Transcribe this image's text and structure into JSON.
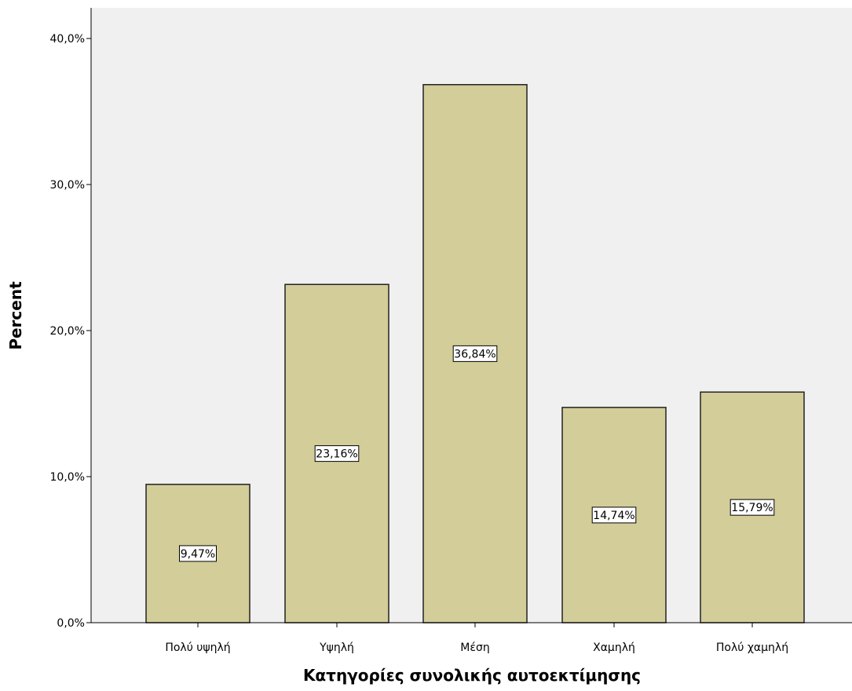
{
  "chart_data": {
    "type": "bar",
    "xlabel": "Κατηγορίες συνολικής αυτοεκτίμησης",
    "ylabel": "Percent",
    "ylim": [
      0,
      40
    ],
    "yticks": [
      0,
      10,
      20,
      30,
      40
    ],
    "ytick_labels": [
      "0,0%",
      "10,0%",
      "20,0%",
      "30,0%",
      "40,0%"
    ],
    "categories": [
      "Πολύ υψηλή",
      "Υψηλή",
      "Μέση",
      "Χαμηλή",
      "Πολύ χαμηλή"
    ],
    "values": [
      9.47,
      23.16,
      36.84,
      14.74,
      15.79
    ],
    "data_labels": [
      "9,47%",
      "23,16%",
      "36,84%",
      "14,74%",
      "15,79%"
    ],
    "grid": false,
    "colors": {
      "bar_fill": "#d3cd99",
      "bar_stroke": "#222222",
      "plot_background": "#f0f0f0",
      "label_box": "#ffffff"
    }
  }
}
